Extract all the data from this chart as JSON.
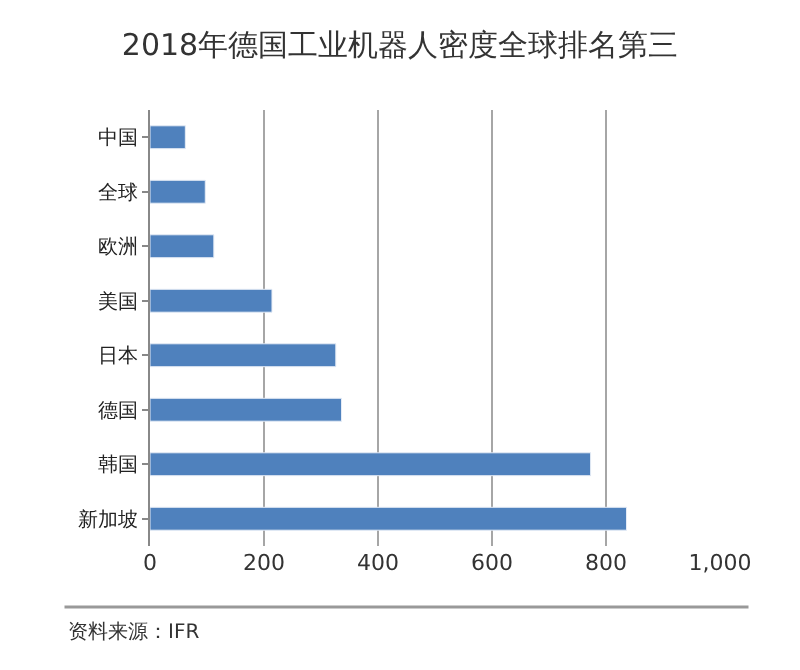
{
  "chart_data": {
    "type": "bar",
    "orientation": "horizontal",
    "title": "2018年德国工业机器人密度全球排名第三",
    "categories": [
      "中国",
      "全球",
      "欧洲",
      "美国",
      "日本",
      "德国",
      "韩国",
      "新加坡"
    ],
    "values": [
      62,
      97,
      112,
      214,
      326,
      336,
      773,
      836
    ],
    "color": "#4f81bd",
    "xlim": [
      0,
      1000
    ],
    "xticks": [
      0,
      200,
      400,
      600,
      800,
      {
        "value": 1000,
        "label": "1,000"
      }
    ],
    "grid": "x",
    "annotations": [
      "资料来源：IFR"
    ]
  }
}
